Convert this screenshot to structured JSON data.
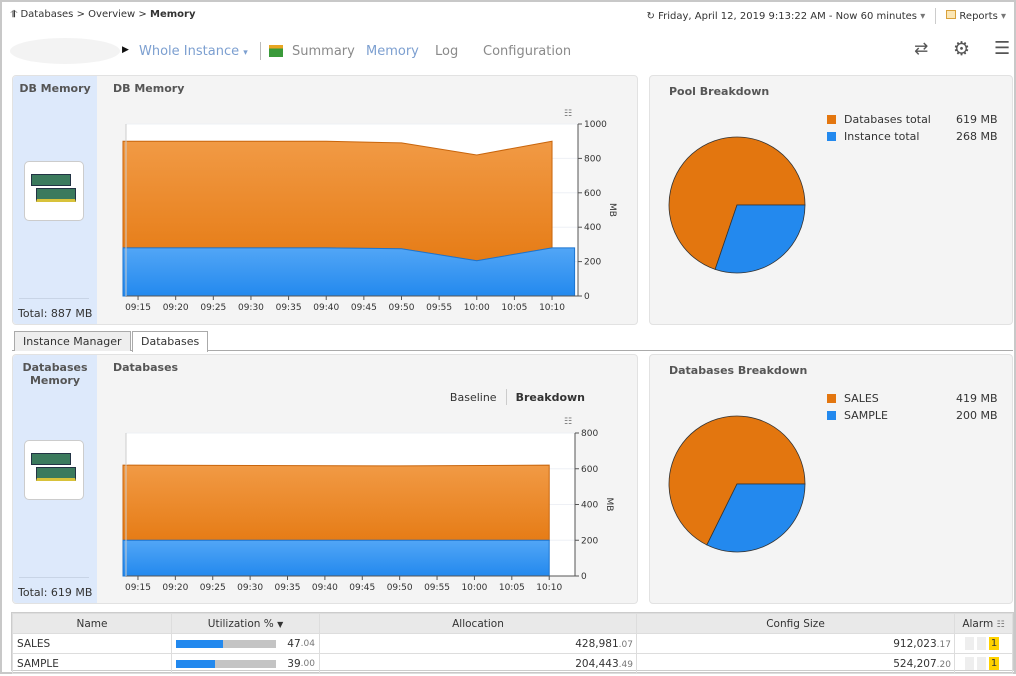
{
  "breadcrumb": {
    "items": [
      "Databases",
      "Overview"
    ],
    "current": "Memory"
  },
  "header": {
    "time_range": "Friday, April 12, 2019 9:13:22 AM - Now 60 minutes",
    "reports": "Reports"
  },
  "nav": {
    "scope": "Whole Instance",
    "tabs": [
      "Summary",
      "Memory",
      "Log",
      "Configuration"
    ],
    "active": "Memory"
  },
  "top": {
    "side_title": "DB Memory",
    "total": "Total: 887 MB",
    "chart_title": "DB Memory",
    "pie_title": "Pool Breakdown",
    "legend": [
      {
        "label": "Databases total",
        "value": "619 MB",
        "color": "#e3760f"
      },
      {
        "label": "Instance total",
        "value": "268 MB",
        "color": "#2389ee"
      }
    ]
  },
  "tabs": [
    "Instance Manager",
    "Databases"
  ],
  "tabs_active": "Databases",
  "bottom": {
    "side_title": "Databases Memory",
    "total": "Total: 619 MB",
    "chart_title": "Databases",
    "toggle": [
      "Baseline",
      "Breakdown"
    ],
    "pie_title": "Databases Breakdown",
    "legend": [
      {
        "label": "SALES",
        "value": "419 MB",
        "color": "#e3760f"
      },
      {
        "label": "SAMPLE",
        "value": "200 MB",
        "color": "#2389ee"
      }
    ]
  },
  "chart_data": [
    {
      "type": "area",
      "stacked": true,
      "ylabel": "MB",
      "ylim": [
        0,
        1000
      ],
      "yticks": [
        "0",
        "200",
        "400",
        "600",
        "800",
        "1000"
      ],
      "xlim": [
        "09:13",
        "10:13"
      ],
      "xticks": [
        "09:15",
        "09:20",
        "09:25",
        "09:30",
        "09:35",
        "09:40",
        "09:45",
        "09:50",
        "09:55",
        "10:00",
        "10:05",
        "10:10"
      ],
      "series": [
        {
          "color": "#2389ee",
          "x": [
            "09:13",
            "09:40",
            "09:50",
            "10:00",
            "10:10",
            "10:13"
          ],
          "values": [
            280,
            280,
            275,
            205,
            280,
            280
          ]
        },
        {
          "color": "#e3760f",
          "x": [
            "09:13",
            "09:40",
            "09:50",
            "10:00",
            "10:10"
          ],
          "values": [
            620,
            620,
            615,
            615,
            620
          ]
        }
      ]
    },
    {
      "type": "area",
      "stacked": true,
      "ylabel": "MB",
      "ylim": [
        0,
        800
      ],
      "yticks": [
        "0",
        "200",
        "400",
        "600",
        "800"
      ],
      "xlim": [
        "09:13",
        "10:13"
      ],
      "xticks": [
        "09:15",
        "09:20",
        "09:25",
        "09:30",
        "09:35",
        "09:40",
        "09:45",
        "09:50",
        "09:55",
        "10:00",
        "10:05",
        "10:10"
      ],
      "series": [
        {
          "color": "#2389ee",
          "x": [
            "09:13",
            "10:10"
          ],
          "values": [
            200,
            200
          ]
        },
        {
          "color": "#e3760f",
          "x": [
            "09:13",
            "09:50",
            "10:10"
          ],
          "values": [
            420,
            416,
            420
          ]
        }
      ]
    },
    {
      "type": "pie",
      "values": [
        619,
        268
      ],
      "labels": [
        "Databases total",
        "Instance total"
      ],
      "colors": [
        "#e3760f",
        "#2389ee"
      ]
    },
    {
      "type": "pie",
      "values": [
        419,
        200
      ],
      "labels": [
        "SALES",
        "SAMPLE"
      ],
      "colors": [
        "#e3760f",
        "#2389ee"
      ]
    }
  ],
  "table": {
    "columns": [
      "Name",
      "Utilization %",
      "Allocation",
      "Config Size",
      "Alarm"
    ],
    "rows": [
      {
        "name": "SALES",
        "util": 47.04,
        "util_int": "47",
        "util_dec": ".04",
        "alloc_int": "428,981",
        "alloc_dec": ".07",
        "cfg_int": "912,023",
        "cfg_dec": ".17",
        "alarm": "1"
      },
      {
        "name": "SAMPLE",
        "util": 39.0,
        "util_int": "39",
        "util_dec": ".00",
        "alloc_int": "204,443",
        "alloc_dec": ".49",
        "cfg_int": "524,207",
        "cfg_dec": ".20",
        "alarm": "1"
      }
    ]
  }
}
